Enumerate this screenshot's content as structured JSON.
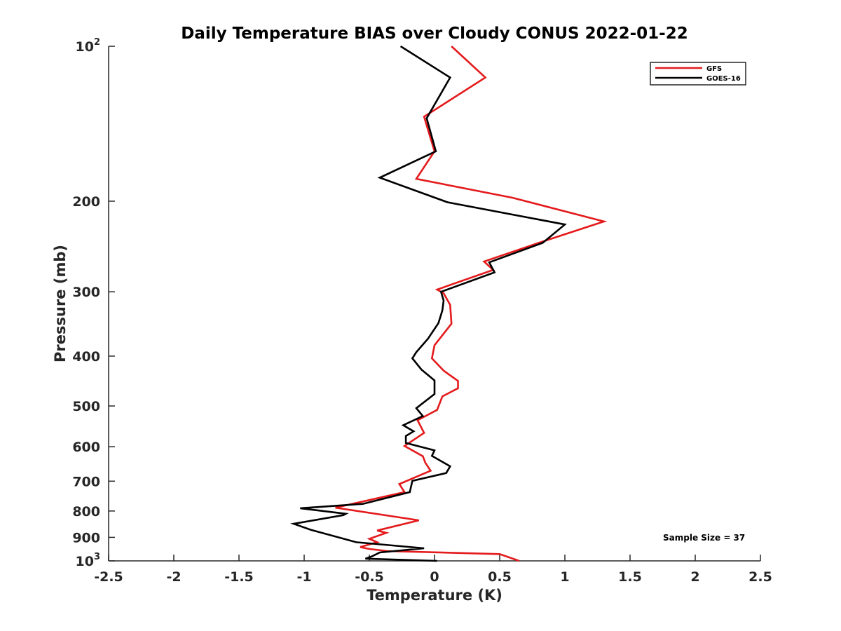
{
  "chart_data": {
    "type": "line",
    "title": "Daily Temperature BIAS over Cloudy CONUS 2022-01-22",
    "xlabel": "Temperature (K)",
    "ylabel": "Pressure (mb)",
    "xlim": [
      -2.5,
      2.5
    ],
    "ylim": [
      100,
      1000
    ],
    "y_scale": "log",
    "y_reversed": true,
    "grid": false,
    "legend_position": "top-right",
    "x_ticks": [
      {
        "v": -2.5,
        "label": "-2.5"
      },
      {
        "v": -2,
        "label": "-2"
      },
      {
        "v": -1.5,
        "label": "-1.5"
      },
      {
        "v": -1,
        "label": "-1"
      },
      {
        "v": -0.5,
        "label": "-0.5"
      },
      {
        "v": 0,
        "label": "0"
      },
      {
        "v": 0.5,
        "label": "0.5"
      },
      {
        "v": 1,
        "label": "1"
      },
      {
        "v": 1.5,
        "label": "1.5"
      },
      {
        "v": 2,
        "label": "2"
      },
      {
        "v": 2.5,
        "label": "2.5"
      }
    ],
    "y_ticks": [
      {
        "v": 100,
        "base": "10",
        "exp": "2"
      },
      {
        "v": 200,
        "label": "200"
      },
      {
        "v": 300,
        "label": "300"
      },
      {
        "v": 400,
        "label": "400"
      },
      {
        "v": 500,
        "label": "500"
      },
      {
        "v": 600,
        "label": "600"
      },
      {
        "v": 700,
        "label": "700"
      },
      {
        "v": 800,
        "label": "800"
      },
      {
        "v": 900,
        "label": "900"
      },
      {
        "v": 1000,
        "base": "10",
        "exp": "3"
      }
    ],
    "annotation": "Sample Size = 37",
    "series": [
      {
        "name": "GFS",
        "color": "#e41a1c",
        "points": [
          [
            0.13,
            100
          ],
          [
            0.39,
            115
          ],
          [
            -0.08,
            137
          ],
          [
            0.0,
            160
          ],
          [
            -0.14,
            181
          ],
          [
            0.6,
            197
          ],
          [
            1.3,
            219
          ],
          [
            0.82,
            240
          ],
          [
            0.38,
            262
          ],
          [
            0.45,
            272
          ],
          [
            0.02,
            297
          ],
          [
            0.07,
            302
          ],
          [
            0.12,
            318
          ],
          [
            0.13,
            346
          ],
          [
            0.0,
            381
          ],
          [
            -0.02,
            404
          ],
          [
            0.07,
            427
          ],
          [
            0.18,
            447
          ],
          [
            0.18,
            462
          ],
          [
            0.06,
            479
          ],
          [
            0.02,
            509
          ],
          [
            -0.13,
            533
          ],
          [
            -0.08,
            564
          ],
          [
            -0.23,
            598
          ],
          [
            -0.09,
            626
          ],
          [
            -0.07,
            645
          ],
          [
            -0.03,
            668
          ],
          [
            -0.27,
            709
          ],
          [
            -0.23,
            735
          ],
          [
            -0.76,
            788
          ],
          [
            -0.12,
            834
          ],
          [
            -0.44,
            873
          ],
          [
            -0.37,
            882
          ],
          [
            -0.5,
            906
          ],
          [
            -0.44,
            920
          ],
          [
            -0.57,
            940
          ],
          [
            -0.5,
            948
          ],
          [
            -0.36,
            957
          ],
          [
            0.5,
            970
          ],
          [
            0.65,
            1000
          ]
        ]
      },
      {
        "name": "GOES-16",
        "color": "#000000",
        "points": [
          [
            -0.26,
            100
          ],
          [
            0.12,
            115
          ],
          [
            -0.06,
            138
          ],
          [
            0.01,
            160
          ],
          [
            -0.42,
            180
          ],
          [
            0.1,
            201
          ],
          [
            1.0,
            222
          ],
          [
            0.83,
            241
          ],
          [
            0.42,
            263
          ],
          [
            0.46,
            275
          ],
          [
            0.05,
            300
          ],
          [
            0.07,
            312
          ],
          [
            0.06,
            326
          ],
          [
            0.03,
            345
          ],
          [
            -0.05,
            370
          ],
          [
            -0.14,
            393
          ],
          [
            -0.17,
            404
          ],
          [
            -0.1,
            425
          ],
          [
            0.0,
            446
          ],
          [
            0.0,
            474
          ],
          [
            -0.14,
            505
          ],
          [
            -0.09,
            523
          ],
          [
            -0.24,
            545
          ],
          [
            -0.16,
            560
          ],
          [
            -0.22,
            572
          ],
          [
            -0.22,
            590
          ],
          [
            0.0,
            610
          ],
          [
            -0.02,
            625
          ],
          [
            0.12,
            655
          ],
          [
            0.09,
            675
          ],
          [
            -0.17,
            699
          ],
          [
            -0.19,
            735
          ],
          [
            -0.55,
            775
          ],
          [
            -1.03,
            790
          ],
          [
            -0.68,
            810
          ],
          [
            -0.7,
            815
          ],
          [
            -1.08,
            847
          ],
          [
            -0.95,
            870
          ],
          [
            -0.6,
            920
          ],
          [
            -0.08,
            945
          ],
          [
            -0.42,
            963
          ],
          [
            -0.48,
            980
          ],
          [
            -0.53,
            990
          ],
          [
            0.02,
            1000
          ]
        ]
      }
    ]
  }
}
